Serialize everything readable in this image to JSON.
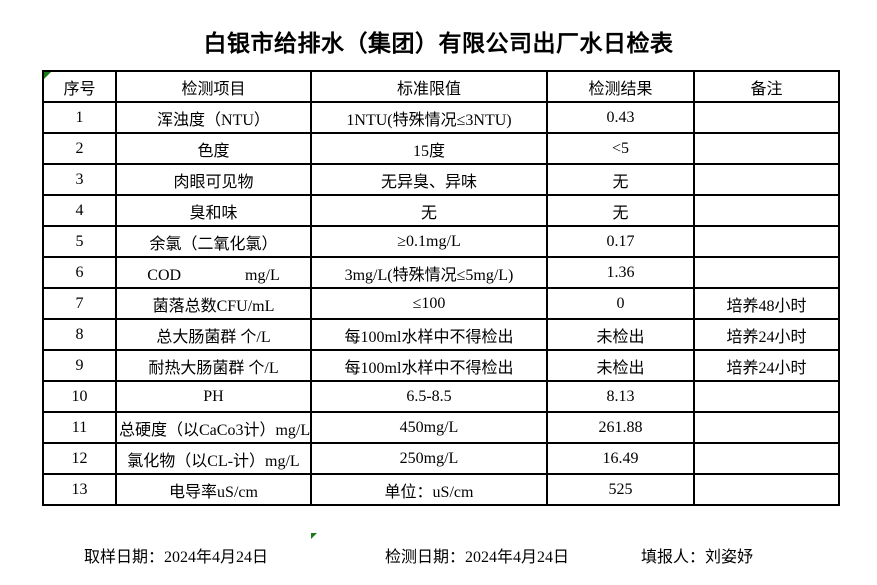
{
  "title": "白银市给排水（集团）有限公司出厂水日检表",
  "colors": {
    "background": "#ffffff",
    "text": "#000000",
    "border": "#000000",
    "flag_green": "#1a7a1a"
  },
  "table": {
    "headers": [
      "序号",
      "检测项目",
      "标准限值",
      "检测结果",
      "备注"
    ],
    "rows": [
      [
        "1",
        "浑浊度（NTU）",
        "1NTU(特殊情况≤3NTU)",
        "0.43",
        ""
      ],
      [
        "2",
        "色度",
        "15度",
        "<5",
        ""
      ],
      [
        "3",
        "肉眼可见物",
        "无异臭、异味",
        "无",
        ""
      ],
      [
        "4",
        "臭和味",
        "无",
        "无",
        ""
      ],
      [
        "5",
        "余氯（二氧化氯）",
        "≥0.1mg/L",
        "0.17",
        ""
      ],
      [
        "6",
        "COD　　　　mg/L",
        "3mg/L(特殊情况≤5mg/L)",
        "1.36",
        ""
      ],
      [
        "7",
        "菌落总数CFU/mL",
        "≤100",
        "0",
        "培养48小时"
      ],
      [
        "8",
        "总大肠菌群 个/L",
        "每100ml水样中不得检出",
        "未检出",
        "培养24小时"
      ],
      [
        "9",
        "耐热大肠菌群 个/L",
        "每100ml水样中不得检出",
        "未检出",
        "培养24小时"
      ],
      [
        "10",
        "PH",
        "6.5-8.5",
        "8.13",
        ""
      ],
      [
        "11",
        "总硬度（以CaCo3计）mg/L",
        "450mg/L",
        "261.88",
        ""
      ],
      [
        "12",
        "氯化物（以CL-计）mg/L",
        "250mg/L",
        "16.49",
        ""
      ],
      [
        "13",
        "电导率uS/cm",
        "单位：uS/cm",
        "525",
        ""
      ]
    ]
  },
  "footer": {
    "sampling": "取样日期：2024年4月24日",
    "testing": "检测日期：2024年4月24日",
    "reporter": "填报人：刘姿妤"
  }
}
